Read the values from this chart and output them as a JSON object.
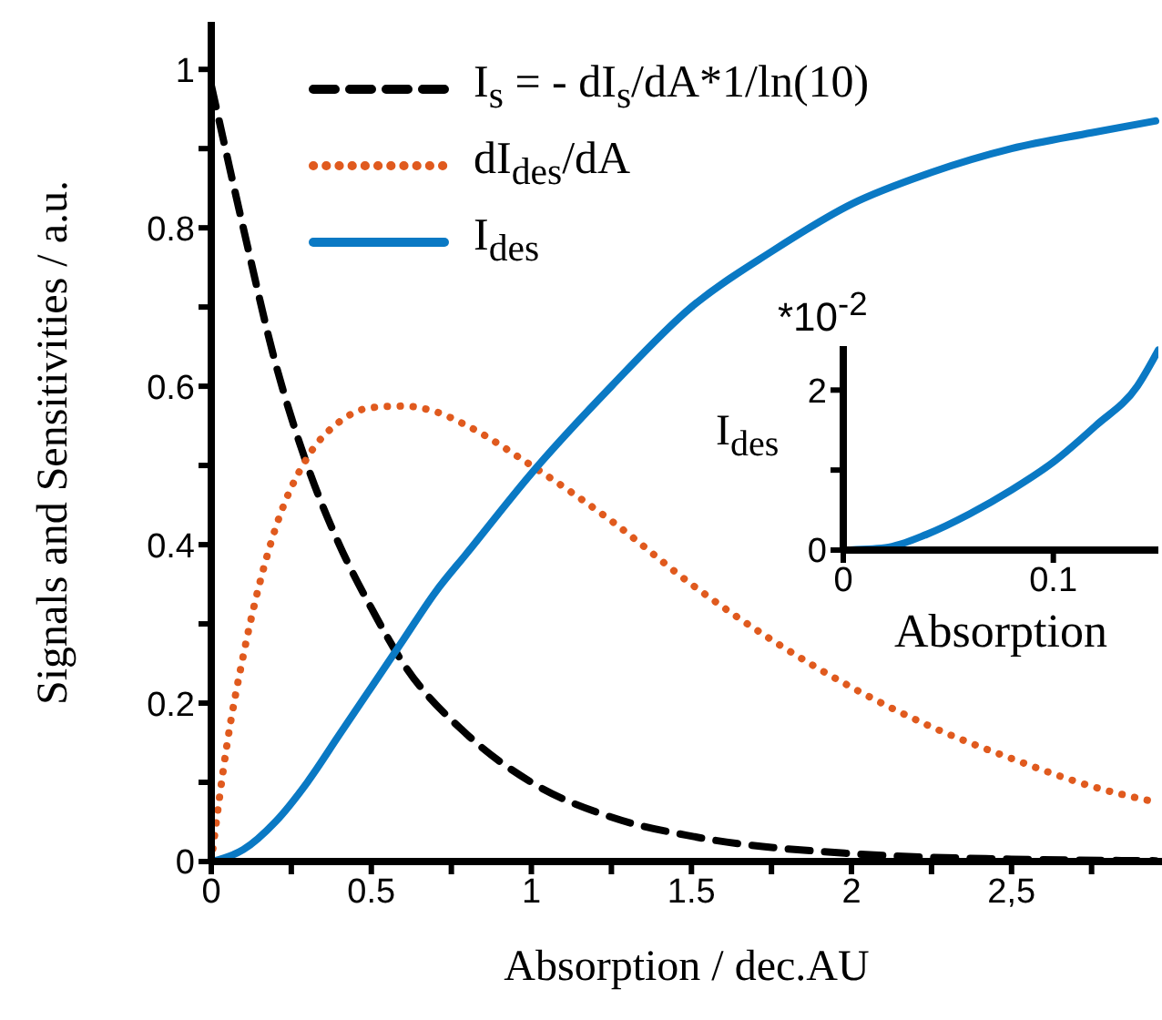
{
  "chart_data": [
    {
      "type": "line",
      "xlabel": "Absorption / dec.AU",
      "ylabel": "Signals and Sensitivities / a.u.",
      "legend": "top",
      "xlim": [
        0,
        2.97
      ],
      "xticks": [
        0,
        {
          "value": 0.25,
          "label": null
        },
        0.5,
        {
          "value": 0.75,
          "label": null
        },
        1,
        {
          "value": 1.25,
          "label": null
        },
        1.5,
        {
          "value": 1.75,
          "label": null
        },
        2,
        {
          "value": 2.25,
          "label": null
        },
        {
          "value": 2.5,
          "label": "2,5"
        },
        {
          "value": 2.75,
          "label": null
        }
      ],
      "ylim": [
        0,
        1.06
      ],
      "yticks": [
        0,
        {
          "value": 0.1,
          "label": null
        },
        0.2,
        {
          "value": 0.3,
          "label": null
        },
        0.4,
        {
          "value": 0.5,
          "label": null
        },
        0.6,
        {
          "value": 0.7,
          "label": null
        },
        0.8,
        {
          "value": 0.9,
          "label": null
        },
        1
      ],
      "series": [
        {
          "name": "I$_{s}$ = - dI$_{s}$/dA*1/ln(10)",
          "color": "#000000",
          "line_style": "dashed",
          "x": [
            0,
            0.1,
            0.2,
            0.3,
            0.4,
            0.5,
            0.6,
            0.8,
            1,
            1.25,
            1.5,
            2,
            2.5,
            2.95
          ],
          "values": [
            0.98,
            0.8,
            0.63,
            0.5,
            0.4,
            0.32,
            0.25,
            0.16,
            0.1,
            0.056,
            0.032,
            0.01,
            0.003,
            0.001
          ]
        },
        {
          "name": "dI$_{des}$/dA",
          "color": "#e05a1e",
          "line_style": "dotted",
          "x": [
            0,
            0.05,
            0.1,
            0.2,
            0.3,
            0.4,
            0.5,
            0.6,
            0.7,
            0.8,
            1,
            1.25,
            1.5,
            1.75,
            2,
            2.25,
            2.5,
            2.75,
            2.95
          ],
          "values": [
            0,
            0.15,
            0.26,
            0.42,
            0.51,
            0.555,
            0.573,
            0.575,
            0.568,
            0.55,
            0.5,
            0.43,
            0.35,
            0.28,
            0.22,
            0.17,
            0.13,
            0.095,
            0.075
          ]
        },
        {
          "name": "I$_{des}$",
          "color": "#0a79c4",
          "line_style": "solid",
          "x": [
            0,
            0.1,
            0.2,
            0.3,
            0.4,
            0.5,
            0.6,
            0.7,
            0.8,
            1,
            1.25,
            1.5,
            1.75,
            2,
            2.25,
            2.5,
            2.75,
            2.95
          ],
          "values": [
            0,
            0.015,
            0.05,
            0.1,
            0.16,
            0.22,
            0.28,
            0.34,
            0.39,
            0.49,
            0.6,
            0.7,
            0.77,
            0.83,
            0.87,
            0.9,
            0.92,
            0.935
          ]
        }
      ]
    },
    {
      "type": "line",
      "xlabel": "Absorption",
      "ylabel": "I$_{des}$",
      "annotations": [
        "*10$^{-2}$"
      ],
      "xlim": [
        0,
        0.15
      ],
      "xticks": [
        0,
        0.1
      ],
      "ylim": [
        0,
        2.55
      ],
      "yticks": [
        0,
        {
          "value": 1,
          "label": null
        },
        2
      ],
      "series": [
        {
          "color": "#0a79c4",
          "line_style": "solid",
          "x": [
            0,
            0.02,
            0.04,
            0.06,
            0.08,
            0.1,
            0.12,
            0.14,
            0.15
          ],
          "values": [
            0,
            0.03,
            0.2,
            0.45,
            0.75,
            1.1,
            1.55,
            2.05,
            2.5
          ]
        }
      ]
    }
  ]
}
